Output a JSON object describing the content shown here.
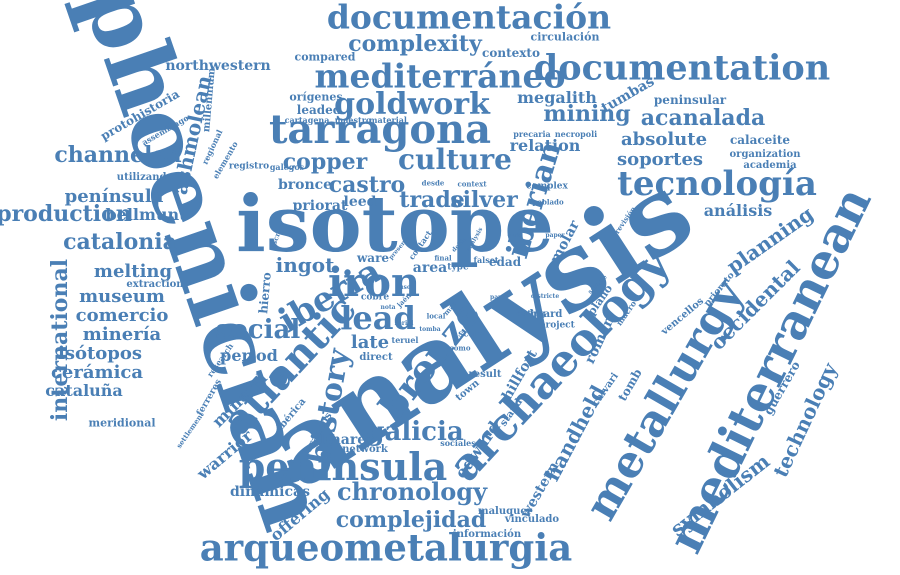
{
  "cloud": {
    "color": "#4a7fb5",
    "words": {
      "analysis": "analysis",
      "phoenician": "phoenician",
      "isotope": "isotope",
      "mediterranean": "mediterranean",
      "metallurgy": "metallurgy",
      "archaeology": "archaeology",
      "arqueometalurgia": "arqueometalurgia",
      "tarragona": "tarragona",
      "documentation": "documentation",
      "documentacion": "documentación",
      "mediterraneo": "mediterráneo",
      "tecnologia": "tecnología",
      "peninsula_en": "peninsula",
      "iron": "iron",
      "atlantic": "atlantic",
      "bronze": "bronze",
      "iberia": "iberia",
      "lead": "lead",
      "goldwork": "goldwork",
      "culture": "culture",
      "complexity": "complexity",
      "mining": "mining",
      "acanalada": "acanalada",
      "catalonia": "catalonia",
      "international": "international",
      "history": "history",
      "iberian": "iberian",
      "social": "social",
      "chronology": "chronology",
      "complejidad": "complejidad",
      "galicia": "galicia",
      "channeled": "channeled",
      "production": "production",
      "copper": "copper",
      "castro": "castro",
      "trade": "trade",
      "silver": "silver",
      "ingot": "ingot",
      "melting": "melting",
      "museum": "museum",
      "comercio": "comercio",
      "mineria": "minería",
      "isotopos": "isótopos",
      "ceramica": "cerámica",
      "cataluna": "cataluña",
      "peninsula_es": "península",
      "bellmunt": "bellmunt",
      "ashmolean": "ashmolean",
      "soportes": "soportes",
      "absolute": "absolute",
      "relation": "relation",
      "megalith": "megalith",
      "planning": "planning",
      "occidental": "occidental",
      "symbolism": "symbolism",
      "technology": "technology",
      "analisis": "análisis",
      "handheld": "handheld",
      "edward": "edward",
      "warrior": "warrior",
      "dinamicas": "dinámicas",
      "offering": "offering",
      "period": "period",
      "late": "late",
      "area": "area",
      "bronce": "bronce",
      "priorat_1": "priorat",
      "leed": "leed",
      "mineral": "mineral",
      "linares": "linares",
      "hillfort": "hillfort",
      "roman": "roman",
      "northwestern": "northwestern",
      "protohistoria": "protohistoria",
      "circulacion": "circulación",
      "contexto": "contexto",
      "compared": "compared",
      "origenes": "orígenes",
      "leaded": "leaded",
      "tumbas": "tumbas",
      "peninsular": "peninsular",
      "calaceite": "calaceite",
      "organization": "organization",
      "academia": "academia",
      "utilizando": "utilizando",
      "millennium": "millennium",
      "assemblage": "assemblage",
      "regional": "regional",
      "elemento": "elemento",
      "registro": "registro",
      "galegos": "galegos",
      "cartagena": "cartagena",
      "maestro": "maestro",
      "material": "material",
      "precaria": "precaria",
      "necropoli": "necropoli",
      "desde": "desde",
      "context": "context",
      "complex": "complex",
      "poblado": "poblado",
      "revision": "revisión",
      "priorato": "priorato",
      "molar": "molar",
      "edad": "edad",
      "ware": "ware",
      "hierro": "hierro",
      "extraction": "extraction",
      "cobre": "cobre",
      "type": "type",
      "falset": "falset",
      "dating": "dating",
      "hoard": "hoard",
      "project": "project",
      "plano": "plano",
      "macro": "macro",
      "vencellos": "vencellos",
      "guerrero": "guerrero",
      "calvari": "calvari",
      "tomb": "tomb",
      "stand": "stand",
      "town": "town",
      "western": "western",
      "result": "result",
      "scale": "scale",
      "direct": "direct",
      "teruel": "teruel",
      "como": "como",
      "iberica": "ibérica",
      "ferreres": "ferreres",
      "research": "research",
      "settlement": "settlement",
      "foraneos": "foráneos",
      "network": "network",
      "sociales": "sociales",
      "maluquer": "maluquer",
      "informacion": "información",
      "vinculado": "vinculado",
      "meridional": "meridional",
      "escribe": "escribe",
      "contact": "contact",
      "final": "final",
      "local": "local",
      "mas": "mas",
      "jaen": "jaén",
      "tomba": "tomba",
      "district": "districte",
      "sample": "sample",
      "paper": "paper",
      "uso": "uso",
      "part": "part",
      "nota": "nota",
      "doble": "doble",
      "presente": "presente",
      "analysis_small": "analysis",
      "caso": "caso",
      "serial": "serial"
    }
  }
}
